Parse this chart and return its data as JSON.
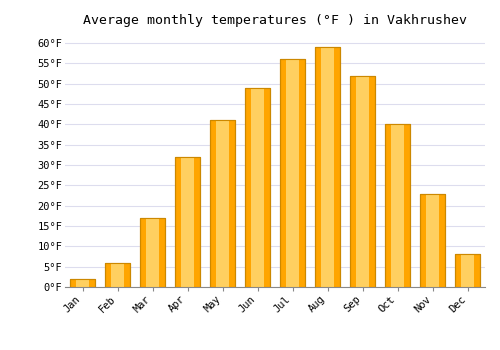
{
  "title": "Average monthly temperatures (°F ) in Vakhrushev",
  "months": [
    "Jan",
    "Feb",
    "Mar",
    "Apr",
    "May",
    "Jun",
    "Jul",
    "Aug",
    "Sep",
    "Oct",
    "Nov",
    "Dec"
  ],
  "values": [
    2,
    6,
    17,
    32,
    41,
    49,
    56,
    59,
    52,
    40,
    23,
    8
  ],
  "bar_color": "#FFA500",
  "bar_edge_color": "#CC8800",
  "ylim": [
    0,
    62
  ],
  "yticks": [
    0,
    5,
    10,
    15,
    20,
    25,
    30,
    35,
    40,
    45,
    50,
    55,
    60
  ],
  "ytick_labels": [
    "0°F",
    "5°F",
    "10°F",
    "15°F",
    "20°F",
    "25°F",
    "30°F",
    "35°F",
    "40°F",
    "45°F",
    "50°F",
    "55°F",
    "60°F"
  ],
  "title_fontsize": 9.5,
  "tick_fontsize": 7.5,
  "background_color": "#FFFFFF",
  "plot_bg_color": "#FFFFFF",
  "grid_color": "#DDDDEE",
  "bar_width": 0.7
}
